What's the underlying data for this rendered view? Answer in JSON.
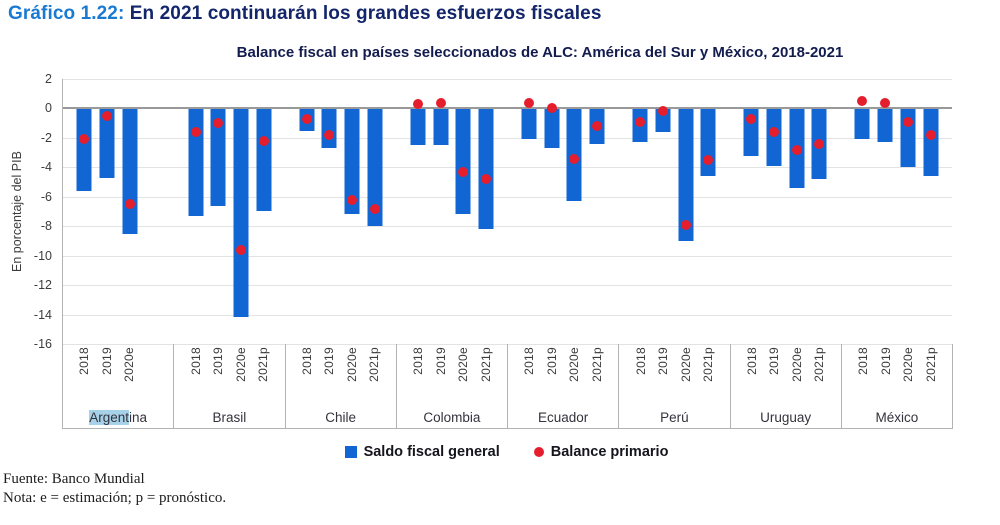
{
  "header": {
    "prefix": "Gráfico 1.22:",
    "title": " En 2021 continuarán los grandes esfuerzos fiscales"
  },
  "chart_data": {
    "type": "bar",
    "title": "Balance fiscal en países seleccionados de ALC: América del Sur y México, 2018-2021",
    "ylabel": "En porcentaje del PIB",
    "ylim": [
      -16,
      2
    ],
    "yticks": [
      2,
      0,
      -2,
      -4,
      -6,
      -8,
      -10,
      -12,
      -14,
      -16
    ],
    "grid": "horizontal",
    "slots_per_group": 4,
    "series_names": [
      "Saldo fiscal general",
      "Balance primario"
    ],
    "groups": [
      {
        "country": "Argentina",
        "highlight_prefix": "Argent",
        "years": [
          "2018",
          "2019",
          "2020e"
        ],
        "saldo_fiscal_general": [
          -5.6,
          -4.7,
          -8.5
        ],
        "balance_primario": [
          -2.1,
          -0.5,
          -6.5
        ]
      },
      {
        "country": "Brasil",
        "years": [
          "2018",
          "2019",
          "2020e",
          "2021p"
        ],
        "saldo_fiscal_general": [
          -7.3,
          -6.6,
          -14.2,
          -7.0
        ],
        "balance_primario": [
          -1.6,
          -1.0,
          -9.6,
          -2.2
        ]
      },
      {
        "country": "Chile",
        "years": [
          "2018",
          "2019",
          "2020e",
          "2021p"
        ],
        "saldo_fiscal_general": [
          -1.5,
          -2.7,
          -7.2,
          -8.0
        ],
        "balance_primario": [
          -0.7,
          -1.8,
          -6.2,
          -6.8
        ]
      },
      {
        "country": "Colombia",
        "years": [
          "2018",
          "2019",
          "2020e",
          "2021p"
        ],
        "saldo_fiscal_general": [
          -2.5,
          -2.5,
          -7.2,
          -8.2
        ],
        "balance_primario": [
          0.3,
          0.4,
          -4.3,
          -4.8
        ]
      },
      {
        "country": "Ecuador",
        "years": [
          "2018",
          "2019",
          "2020e",
          "2021p"
        ],
        "saldo_fiscal_general": [
          -2.1,
          -2.7,
          -6.3,
          -2.4
        ],
        "balance_primario": [
          0.4,
          0.0,
          -3.4,
          -1.2
        ]
      },
      {
        "country": "Perú",
        "years": [
          "2018",
          "2019",
          "2020e",
          "2021p"
        ],
        "saldo_fiscal_general": [
          -2.3,
          -1.6,
          -9.0,
          -4.6
        ],
        "balance_primario": [
          -0.9,
          -0.2,
          -7.9,
          -3.5
        ]
      },
      {
        "country": "Uruguay",
        "years": [
          "2018",
          "2019",
          "2020e",
          "2021p"
        ],
        "saldo_fiscal_general": [
          -3.2,
          -3.9,
          -5.4,
          -4.8
        ],
        "balance_primario": [
          -0.7,
          -1.6,
          -2.8,
          -2.4
        ]
      },
      {
        "country": "México",
        "years": [
          "2018",
          "2019",
          "2020e",
          "2021p"
        ],
        "saldo_fiscal_general": [
          -2.1,
          -2.3,
          -4.0,
          -4.6
        ],
        "balance_primario": [
          0.5,
          0.4,
          -0.9,
          -1.8
        ]
      }
    ]
  },
  "legend": [
    {
      "label": "Saldo fiscal general",
      "marker": "square",
      "color": "#1266d4"
    },
    {
      "label": "Balance primario",
      "marker": "circle",
      "color": "#e41e2d"
    }
  ],
  "footer": {
    "source": "Fuente: Banco Mundial",
    "note": "Nota: e = estimación; p = pronóstico."
  },
  "colors": {
    "bar": "#1266d4",
    "dot": "#e41e2d",
    "title_prefix": "#1a7ad2",
    "title_main": "#13256b",
    "highlight": "#a7d1e8",
    "gridline": "#e3e3e3",
    "zero_line": "#999999"
  }
}
